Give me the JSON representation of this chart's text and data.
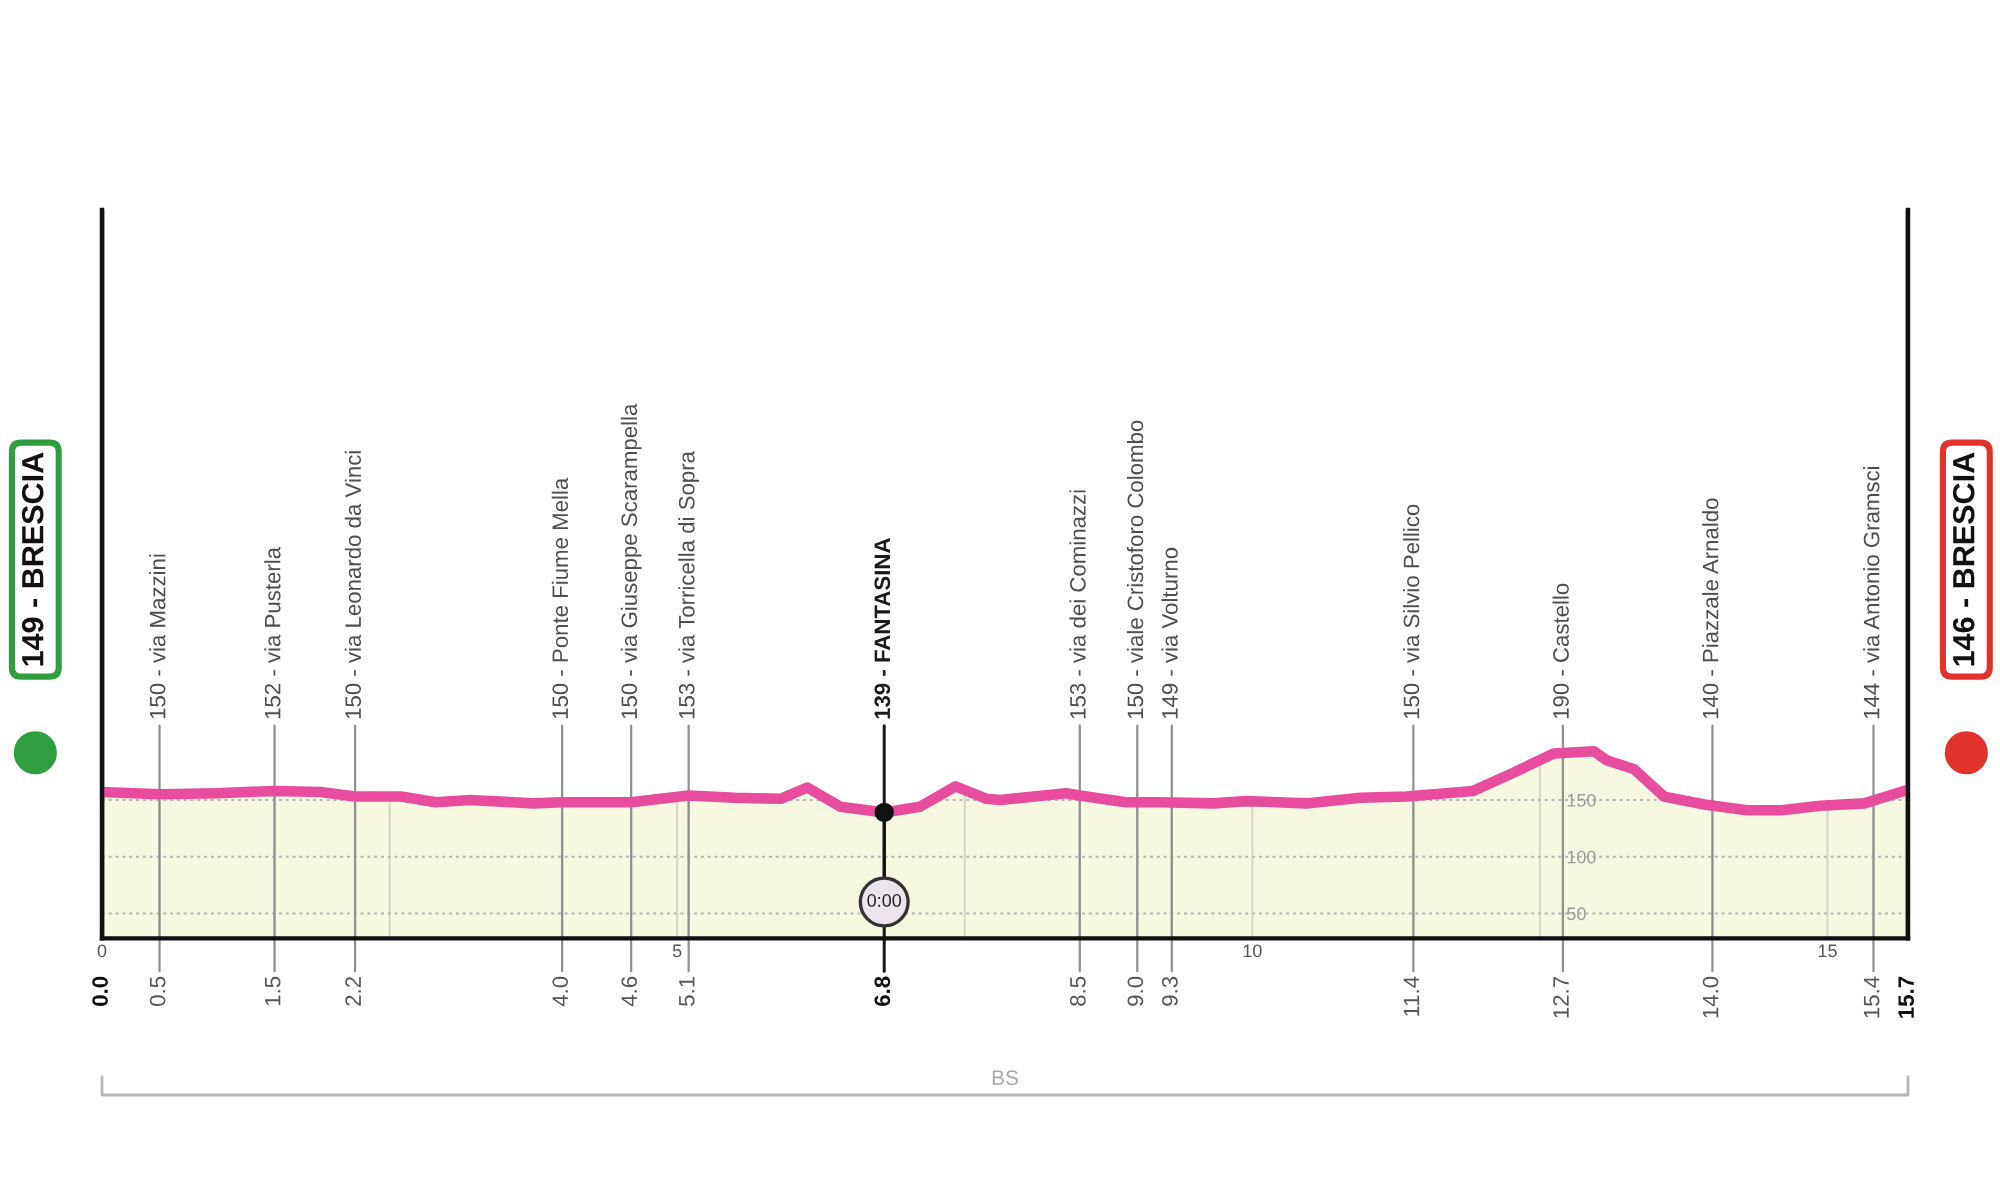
{
  "chart_data": {
    "type": "area",
    "x": [
      0,
      0.5,
      1.0,
      1.5,
      1.9,
      2.2,
      2.6,
      2.9,
      3.2,
      3.75,
      4.0,
      4.6,
      5.1,
      5.5,
      5.9,
      6.13,
      6.42,
      6.8,
      7.11,
      7.42,
      7.69,
      7.81,
      8.38,
      8.5,
      8.9,
      9.2,
      9.66,
      9.95,
      10.47,
      10.94,
      11.34,
      11.92,
      12.27,
      12.62,
      12.97,
      13.08,
      13.32,
      13.58,
      13.93,
      14.3,
      14.6,
      14.94,
      15.32,
      15.7
    ],
    "values": [
      157,
      155,
      156,
      158,
      157,
      153,
      153,
      148,
      150,
      147,
      148,
      148,
      154,
      152,
      151,
      161,
      144,
      139,
      144,
      162,
      151,
      150,
      156,
      154,
      148,
      148,
      147,
      149,
      147,
      152,
      153,
      158,
      174,
      191,
      193,
      185,
      177,
      153,
      146,
      141,
      141,
      145,
      147,
      159
    ],
    "color": "#e84d9d",
    "xlim": [
      0,
      15.7
    ],
    "xticks": [
      {
        "value": 0,
        "label": "0.0"
      },
      {
        "value": 0.5,
        "label": "0.5"
      },
      {
        "value": 1.5,
        "label": "1.5"
      },
      {
        "value": 2.2,
        "label": "2.2"
      },
      {
        "value": 4,
        "label": "4.0"
      },
      {
        "value": 4.6,
        "label": "4.6"
      },
      {
        "value": 5.1,
        "label": "5.1"
      },
      {
        "value": 6.8,
        "label": "6.8"
      },
      {
        "value": 8.5,
        "label": "8.5"
      },
      {
        "value": 9,
        "label": "9.0"
      },
      {
        "value": 9.3,
        "label": "9.3"
      },
      {
        "value": 11.4,
        "label": "11.4"
      },
      {
        "value": 12.7,
        "label": "12.7"
      },
      {
        "value": 14,
        "label": "14.0"
      },
      {
        "value": 15.4,
        "label": "15.4"
      },
      {
        "value": 15.7,
        "label": "15.7"
      }
    ],
    "x2lim": [
      0,
      15.7
    ],
    "x2ticks": [
      0,
      {
        "value": 2.5,
        "label": null
      },
      5,
      {
        "value": 7.5,
        "label": null
      },
      10,
      {
        "value": 12.5,
        "label": null
      },
      15
    ],
    "ylim": [
      28,
      670
    ],
    "yticks": [
      50,
      100,
      150
    ],
    "grid": true,
    "ref_lines": [
      {
        "axis": "x",
        "value": 0,
        "label": "149 - BRESCIA"
      },
      {
        "axis": "x",
        "value": 0.5,
        "label": "150 - via Mazzini"
      },
      {
        "axis": "x",
        "value": 1.5,
        "label": "152 - via Pusterla"
      },
      {
        "axis": "x",
        "value": 2.2,
        "label": "150 - via Leonardo da Vinci"
      },
      {
        "axis": "x",
        "value": 4.0,
        "label": "150 - Ponte Fiume Mella"
      },
      {
        "axis": "x",
        "value": 4.6,
        "label": "150 - via Giuseppe Scarampella"
      },
      {
        "axis": "x",
        "value": 5.1,
        "label": "153 - via Torricella di Sopra"
      },
      {
        "axis": "x",
        "value": 6.8,
        "label": "139 - FANTASINA",
        "color": "#1a1a1a"
      },
      {
        "axis": "x",
        "value": 8.5,
        "label": "153 - via dei Cominazzi"
      },
      {
        "axis": "x",
        "value": 9.0,
        "label": "150 - viale Cristoforo Colombo"
      },
      {
        "axis": "x",
        "value": 9.3,
        "label": "149 - via Volturno"
      },
      {
        "axis": "x",
        "value": 11.4,
        "label": "150 - via Silvio Pellico"
      },
      {
        "axis": "x",
        "value": 12.7,
        "label": "190 - Castello"
      },
      {
        "axis": "x",
        "value": 14.0,
        "label": "140 - Piazzale Arnaldo"
      },
      {
        "axis": "x",
        "value": 15.4,
        "label": "144 - via Antonio Gramsci"
      },
      {
        "axis": "x",
        "value": 15.7,
        "label": "146 - BRESCIA"
      }
    ],
    "annotations": [
      "BS",
      {
        "text": "0:00",
        "x": 6.8,
        "y": 139
      }
    ]
  }
}
